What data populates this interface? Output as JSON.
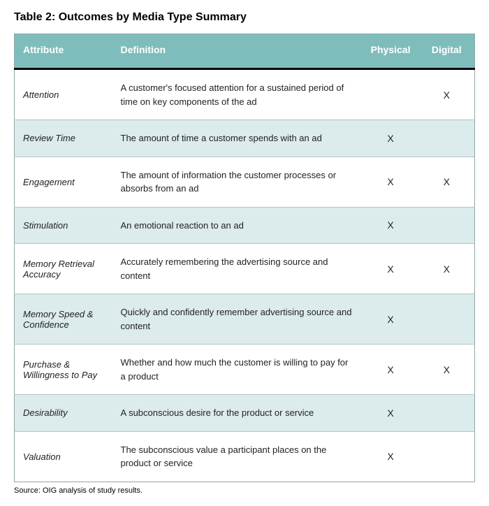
{
  "title": "Table 2: Outcomes by Media Type Summary",
  "columns": [
    "Attribute",
    "Definition",
    "Physical",
    "Digital"
  ],
  "rows": [
    {
      "attribute": "Attention",
      "definition": "A customer's focused attention for a sustained period of time on key components of the ad",
      "physical": "",
      "digital": "X"
    },
    {
      "attribute": "Review Time",
      "definition": "The amount of time a customer spends with an ad",
      "physical": "X",
      "digital": ""
    },
    {
      "attribute": "Engagement",
      "definition": "The amount of information the customer processes or absorbs from an ad",
      "physical": "X",
      "digital": "X"
    },
    {
      "attribute": "Stimulation",
      "definition": "An emotional reaction to an ad",
      "physical": "X",
      "digital": ""
    },
    {
      "attribute": "Memory Retrieval Accuracy",
      "definition": "Accurately remembering the advertising source and content",
      "physical": "X",
      "digital": "X"
    },
    {
      "attribute": "Memory Speed & Confidence",
      "definition": "Quickly and confidently remember advertising source and content",
      "physical": "X",
      "digital": ""
    },
    {
      "attribute": "Purchase & Willingness to Pay",
      "definition": "Whether and how much the customer is willing to pay for a product",
      "physical": "X",
      "digital": "X"
    },
    {
      "attribute": "Desirability",
      "definition": "A subconscious desire for the product or service",
      "physical": "X",
      "digital": ""
    },
    {
      "attribute": "Valuation",
      "definition": "The subconscious value a participant places on the product or service",
      "physical": "X",
      "digital": ""
    }
  ],
  "source": "Source: OIG analysis of study results.",
  "colors": {
    "header_bg": "#7fbdbd",
    "header_text": "#ffffff",
    "row_alt_bg": "#dcebeb",
    "border": "#8ea6a6",
    "header_divider": "#000000"
  }
}
